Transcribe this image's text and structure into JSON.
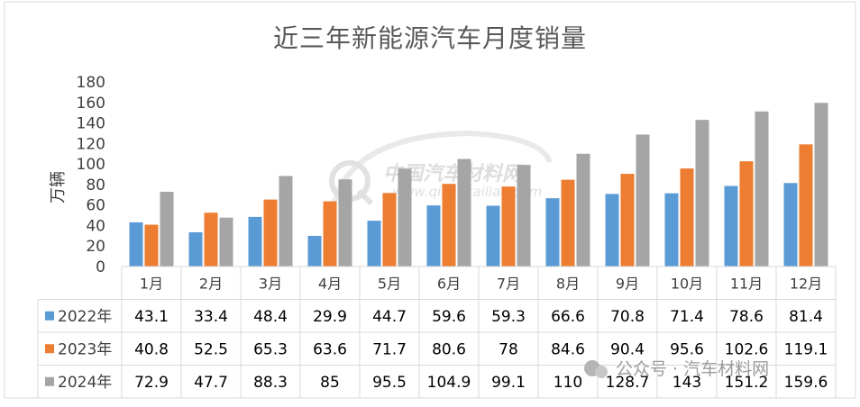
{
  "chart_data": {
    "type": "bar",
    "title": "近三年新能源汽车月度销量",
    "ylabel": "万辆",
    "xlabel": "",
    "ylim": [
      0,
      180
    ],
    "yticks": [
      0,
      20,
      40,
      60,
      80,
      100,
      120,
      140,
      160,
      180
    ],
    "categories": [
      "1月",
      "2月",
      "3月",
      "4月",
      "5月",
      "6月",
      "7月",
      "8月",
      "9月",
      "10月",
      "11月",
      "12月"
    ],
    "series": [
      {
        "name": "2022年",
        "color": "#5b9bd5",
        "values": [
          43.1,
          33.4,
          48.4,
          29.9,
          44.7,
          59.6,
          59.3,
          66.6,
          70.8,
          71.4,
          78.6,
          81.4
        ],
        "labels": [
          "43.1",
          "33.4",
          "48.4",
          "29.9",
          "44.7",
          "59.6",
          "59.3",
          "66.6",
          "70.8",
          "71.4",
          "78.6",
          "81.4"
        ]
      },
      {
        "name": "2023年",
        "color": "#ed7d31",
        "values": [
          40.8,
          52.5,
          65.3,
          63.6,
          71.7,
          80.6,
          78,
          84.6,
          90.4,
          95.6,
          102.6,
          119.1
        ],
        "labels": [
          "40.8",
          "52.5",
          "65.3",
          "63.6",
          "71.7",
          "80.6",
          "78",
          "84.6",
          "90.4",
          "95.6",
          "102.6",
          "119.1"
        ]
      },
      {
        "name": "2024年",
        "color": "#a5a5a5",
        "values": [
          72.9,
          47.7,
          88.3,
          85,
          95.5,
          104.9,
          99.1,
          110,
          128.7,
          143,
          151.2,
          159.6
        ],
        "labels": [
          "72.9",
          "47.7",
          "88.3",
          "85",
          "95.5",
          "104.9",
          "99.1",
          "110",
          "128.7",
          "143",
          "151.2",
          "159.6"
        ]
      }
    ],
    "grid": false,
    "legend": "data-table-left",
    "data_table": true
  },
  "watermark": {
    "logo_text": "中国汽车材料网",
    "logo_url_text": "www.qichecailiao.com",
    "account_text": "公众号 · 汽车材料网"
  }
}
